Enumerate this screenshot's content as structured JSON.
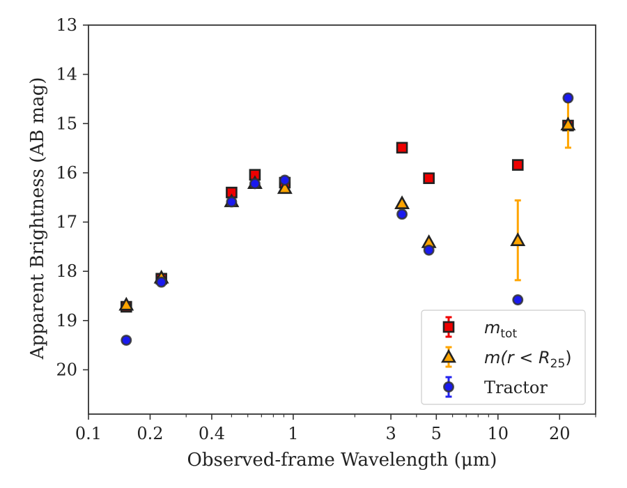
{
  "chart_data": {
    "type": "scatter",
    "xlabel": "Observed-frame Wavelength (μm)",
    "ylabel": "Apparent Brightness (AB mag)",
    "x_scale": "log",
    "xlim": [
      0.1,
      30
    ],
    "ylim": [
      20.9,
      13
    ],
    "y_inverted": true,
    "x_ticks": [
      0.1,
      0.2,
      0.4,
      1,
      3,
      5,
      10,
      20
    ],
    "x_tick_labels": [
      "0.1",
      "0.2",
      "0.4",
      "1",
      "3",
      "5",
      "10",
      "20"
    ],
    "y_ticks": [
      13,
      14,
      15,
      16,
      17,
      18,
      19,
      20
    ],
    "y_tick_labels": [
      "13",
      "14",
      "15",
      "16",
      "17",
      "18",
      "19",
      "20"
    ],
    "legend_position": "lower right",
    "grid": false,
    "series": [
      {
        "name": "m_tot",
        "label_main": "m",
        "label_sub": "tot",
        "marker": "square",
        "color": "#ee0000",
        "error_color": "#ee0000",
        "x": [
          0.153,
          0.227,
          0.5,
          0.65,
          0.91,
          3.4,
          4.6,
          12.5,
          22.0
        ],
        "y": [
          18.72,
          18.15,
          16.4,
          16.04,
          16.2,
          15.49,
          16.11,
          15.84,
          15.04
        ],
        "yerr": [
          0.02,
          0.02,
          0.02,
          0.02,
          0.02,
          0.02,
          0.02,
          0.02,
          0.05
        ]
      },
      {
        "name": "m(r < R25)",
        "label_main": "m(r < R",
        "label_sub": "25",
        "label_end": ")",
        "marker": "triangle",
        "color": "#ffa500",
        "error_color": "#ffa500",
        "x": [
          0.153,
          0.227,
          0.5,
          0.65,
          0.91,
          3.4,
          4.6,
          12.5,
          22.0
        ],
        "y": [
          18.68,
          18.13,
          16.58,
          16.21,
          16.31,
          16.62,
          17.41,
          17.37,
          15.02
        ],
        "yerr": [
          0.02,
          0.02,
          0.02,
          0.02,
          0.02,
          0.02,
          0.03,
          0.81,
          0.47
        ]
      },
      {
        "name": "Tractor",
        "marker": "circle",
        "color": "#1a1aee",
        "error_color": "#2222ee",
        "x": [
          0.153,
          0.227,
          0.5,
          0.65,
          0.91,
          3.4,
          4.6,
          12.5,
          22.0
        ],
        "y": [
          19.4,
          18.22,
          16.59,
          16.22,
          16.15,
          16.84,
          17.57,
          18.58,
          14.48
        ],
        "yerr": [
          0.02,
          0.02,
          0.02,
          0.02,
          0.02,
          0.02,
          0.02,
          0.02,
          0.07
        ]
      }
    ]
  }
}
